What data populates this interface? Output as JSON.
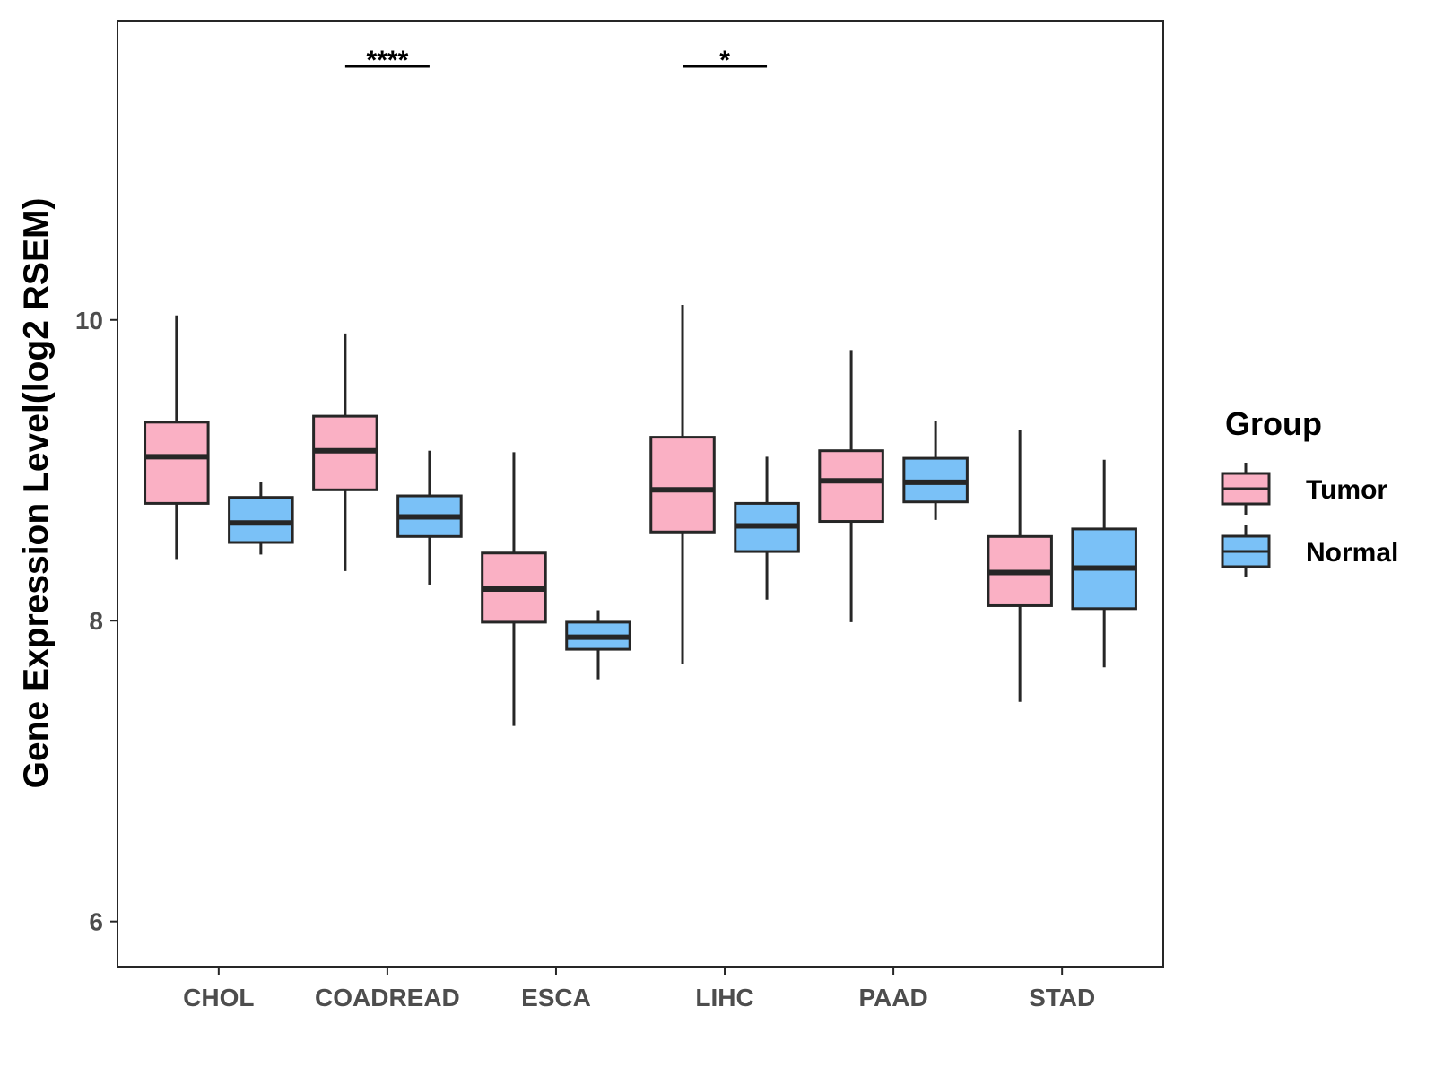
{
  "chart_data": {
    "type": "boxplot",
    "title": "",
    "xlabel": "",
    "ylabel": "Gene Expression Level(log2 RSEM)",
    "ylim": [
      5.7,
      11.99
    ],
    "yticks": [
      6,
      8,
      10
    ],
    "categories": [
      "CHOL",
      "COADREAD",
      "ESCA",
      "LIHC",
      "PAAD",
      "STAD"
    ],
    "legend": {
      "title": "Group",
      "position": "right"
    },
    "colors": {
      "Tumor": "#FAB0C4",
      "Normal": "#7AC1F7",
      "stroke": "#262626"
    },
    "series": [
      {
        "name": "Tumor",
        "boxes": [
          {
            "min": 8.41,
            "q1": 8.78,
            "median": 9.09,
            "q3": 9.32,
            "max": 10.03
          },
          {
            "min": 8.33,
            "q1": 8.87,
            "median": 9.13,
            "q3": 9.36,
            "max": 9.91
          },
          {
            "min": 7.3,
            "q1": 7.99,
            "median": 8.21,
            "q3": 8.45,
            "max": 9.12
          },
          {
            "min": 7.71,
            "q1": 8.59,
            "median": 8.87,
            "q3": 9.22,
            "max": 10.1
          },
          {
            "min": 7.99,
            "q1": 8.66,
            "median": 8.93,
            "q3": 9.13,
            "max": 9.8
          },
          {
            "min": 7.46,
            "q1": 8.1,
            "median": 8.32,
            "q3": 8.56,
            "max": 9.27
          }
        ]
      },
      {
        "name": "Normal",
        "boxes": [
          {
            "min": 8.44,
            "q1": 8.52,
            "median": 8.65,
            "q3": 8.82,
            "max": 8.92
          },
          {
            "min": 8.24,
            "q1": 8.56,
            "median": 8.69,
            "q3": 8.83,
            "max": 9.13
          },
          {
            "min": 7.61,
            "q1": 7.81,
            "median": 7.89,
            "q3": 7.99,
            "max": 8.07
          },
          {
            "min": 8.14,
            "q1": 8.46,
            "median": 8.63,
            "q3": 8.78,
            "max": 9.09
          },
          {
            "min": 8.67,
            "q1": 8.79,
            "median": 8.92,
            "q3": 9.08,
            "max": 9.33
          },
          {
            "min": 7.69,
            "q1": 8.08,
            "median": 8.35,
            "q3": 8.61,
            "max": 9.07
          }
        ]
      }
    ],
    "annotations": [
      {
        "category": "COADREAD",
        "label": "****"
      },
      {
        "category": "LIHC",
        "label": "*"
      }
    ]
  }
}
